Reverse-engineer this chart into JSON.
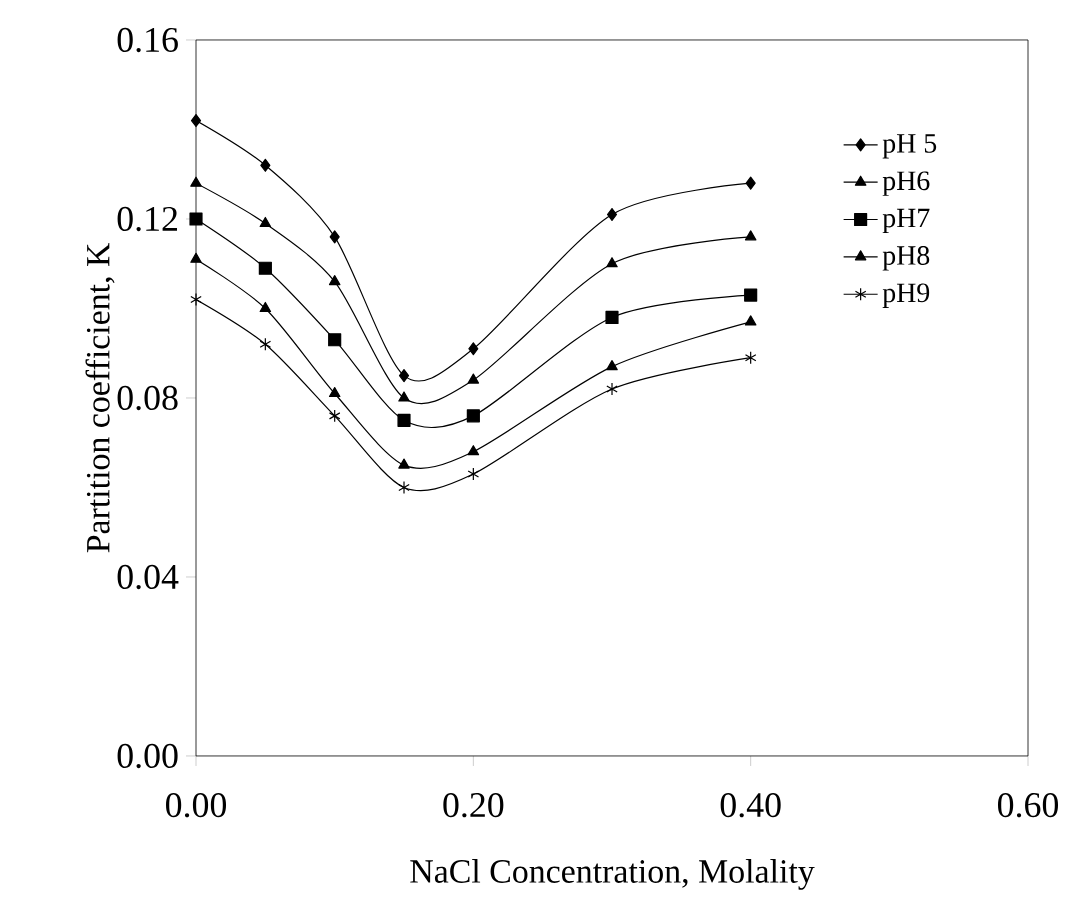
{
  "chart_data": {
    "type": "line",
    "xlabel": "NaCl Concentration, Molality",
    "ylabel": "Partition coefficient, K",
    "x": [
      0,
      0.05,
      0.1,
      0.15,
      0.2,
      0.3,
      0.4
    ],
    "xlim": [
      0,
      0.6
    ],
    "ylim": [
      0,
      0.16
    ],
    "xticks": [
      {
        "value": 0,
        "label": "0.00"
      },
      {
        "value": 0.2,
        "label": "0.20"
      },
      {
        "value": 0.4,
        "label": "0.40"
      },
      {
        "value": 0.6,
        "label": "0.60"
      }
    ],
    "yticks": [
      {
        "value": 0,
        "label": "0.00"
      },
      {
        "value": 0.04,
        "label": "0.04"
      },
      {
        "value": 0.08,
        "label": "0.08"
      },
      {
        "value": 0.12,
        "label": "0.12"
      },
      {
        "value": 0.16,
        "label": "0.16"
      }
    ],
    "grid": false,
    "legend": "top right",
    "line_style": "solid",
    "series": [
      {
        "name": "pH 5",
        "color": "#000000",
        "marker": "diamond",
        "values": [
          0.142,
          0.132,
          0.116,
          0.085,
          0.091,
          0.121,
          0.128
        ]
      },
      {
        "name": "pH6",
        "color": "#000000",
        "marker": "triangle",
        "values": [
          0.128,
          0.119,
          0.106,
          0.08,
          0.084,
          0.11,
          0.116
        ]
      },
      {
        "name": "pH7",
        "color": "#000000",
        "marker": "square",
        "values": [
          0.12,
          0.109,
          0.093,
          0.075,
          0.076,
          0.098,
          0.103
        ]
      },
      {
        "name": "pH8",
        "color": "#000000",
        "marker": "triangle",
        "values": [
          0.111,
          0.1,
          0.081,
          0.065,
          0.068,
          0.087,
          0.097
        ]
      },
      {
        "name": "pH9",
        "color": "#000000",
        "marker": "cross",
        "values": [
          0.102,
          0.092,
          0.076,
          0.06,
          0.063,
          0.082,
          0.089
        ]
      }
    ]
  }
}
